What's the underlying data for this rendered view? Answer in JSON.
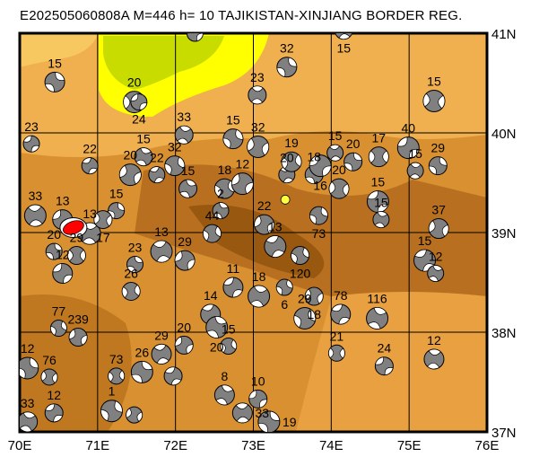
{
  "title": "E202505060808A M=446 h= 10 TAJIKISTAN-XINJIANG BORDER REG.",
  "map": {
    "extent": {
      "lon": [
        70,
        76
      ],
      "lat": [
        37,
        41
      ]
    },
    "lon_labels": [
      "70E",
      "71E",
      "72E",
      "73E",
      "74E",
      "75E",
      "76E"
    ],
    "lat_labels": [
      "37N",
      "38N",
      "39N",
      "40N",
      "41N"
    ],
    "colors": {
      "lowland": "#ffff00",
      "lowland2": "#c8dc00",
      "foothill": "#f0b050",
      "mid": "#d89030",
      "high": "#b87020",
      "peak": "#985810",
      "mechanism": "#808080",
      "main_event": "#ff0000",
      "epicenter": "#ffff40"
    },
    "main_event": {
      "lon": 70.69,
      "lat": 39.05
    },
    "epicenter": {
      "lon": 73.41,
      "lat": 39.33
    },
    "mechanisms": [
      {
        "lon": 72.25,
        "lat": 41.0,
        "label": ""
      },
      {
        "lon": 74.16,
        "lat": 41.03,
        "label": "15"
      },
      {
        "lon": 70.45,
        "lat": 40.51,
        "label": "15"
      },
      {
        "lon": 71.47,
        "lat": 40.31,
        "label": "20"
      },
      {
        "lon": 71.53,
        "lat": 40.31,
        "label": "24"
      },
      {
        "lon": 73.05,
        "lat": 40.38,
        "label": "23"
      },
      {
        "lon": 73.43,
        "lat": 40.66,
        "label": "32"
      },
      {
        "lon": 75.32,
        "lat": 40.32,
        "label": "15"
      },
      {
        "lon": 70.15,
        "lat": 39.89,
        "label": "23"
      },
      {
        "lon": 72.11,
        "lat": 39.98,
        "label": "33"
      },
      {
        "lon": 72.74,
        "lat": 39.94,
        "label": "15"
      },
      {
        "lon": 73.06,
        "lat": 39.86,
        "label": "32"
      },
      {
        "lon": 70.9,
        "lat": 39.67,
        "label": "22"
      },
      {
        "lon": 71.59,
        "lat": 39.76,
        "label": "15"
      },
      {
        "lon": 71.99,
        "lat": 39.67,
        "label": "32"
      },
      {
        "lon": 71.42,
        "lat": 39.58,
        "label": "20"
      },
      {
        "lon": 71.76,
        "lat": 39.58,
        "label": "22"
      },
      {
        "lon": 72.16,
        "lat": 39.44,
        "label": "15"
      },
      {
        "lon": 72.63,
        "lat": 39.44,
        "label": "18"
      },
      {
        "lon": 72.86,
        "lat": 39.49,
        "label": "12"
      },
      {
        "lon": 73.43,
        "lat": 39.58,
        "label": "20"
      },
      {
        "lon": 73.78,
        "lat": 39.58,
        "label": "18"
      },
      {
        "lon": 73.49,
        "lat": 39.71,
        "label": "19"
      },
      {
        "lon": 73.86,
        "lat": 39.67,
        "label": "16"
      },
      {
        "lon": 74.05,
        "lat": 39.8,
        "label": "15"
      },
      {
        "lon": 74.28,
        "lat": 39.71,
        "label": "20"
      },
      {
        "lon": 74.61,
        "lat": 39.76,
        "label": "17"
      },
      {
        "lon": 74.99,
        "lat": 39.85,
        "label": "40"
      },
      {
        "lon": 75.08,
        "lat": 39.62,
        "label": "15"
      },
      {
        "lon": 75.37,
        "lat": 39.67,
        "label": "29"
      },
      {
        "lon": 74.1,
        "lat": 39.44,
        "label": "20"
      },
      {
        "lon": 74.6,
        "lat": 39.31,
        "label": "15"
      },
      {
        "lon": 74.64,
        "lat": 39.13,
        "label": "15"
      },
      {
        "lon": 73.84,
        "lat": 39.17,
        "label": "73"
      },
      {
        "lon": 75.38,
        "lat": 39.04,
        "label": "37"
      },
      {
        "lon": 75.2,
        "lat": 38.72,
        "label": "15"
      },
      {
        "lon": 75.34,
        "lat": 38.59,
        "label": "12"
      },
      {
        "lon": 73.6,
        "lat": 38.77,
        "label": "120"
      },
      {
        "lon": 73.14,
        "lat": 39.08,
        "label": "22"
      },
      {
        "lon": 73.28,
        "lat": 38.86,
        "label": "13"
      },
      {
        "lon": 72.58,
        "lat": 39.22,
        "label": "2"
      },
      {
        "lon": 72.47,
        "lat": 38.99,
        "label": "44"
      },
      {
        "lon": 72.12,
        "lat": 38.72,
        "label": "29"
      },
      {
        "lon": 71.82,
        "lat": 38.81,
        "label": "13"
      },
      {
        "lon": 71.48,
        "lat": 38.68,
        "label": "23"
      },
      {
        "lon": 71.43,
        "lat": 38.41,
        "label": "26"
      },
      {
        "lon": 70.55,
        "lat": 39.13,
        "label": "13"
      },
      {
        "lon": 70.2,
        "lat": 39.17,
        "label": "33"
      },
      {
        "lon": 70.44,
        "lat": 38.81,
        "label": "20"
      },
      {
        "lon": 70.73,
        "lat": 38.77,
        "label": "29"
      },
      {
        "lon": 70.55,
        "lat": 38.59,
        "label": "12"
      },
      {
        "lon": 70.9,
        "lat": 38.99,
        "label": "13"
      },
      {
        "lon": 71.24,
        "lat": 39.22,
        "label": "15"
      },
      {
        "lon": 71.07,
        "lat": 39.13,
        "label": "17"
      },
      {
        "lon": 72.74,
        "lat": 38.45,
        "label": "11"
      },
      {
        "lon": 73.07,
        "lat": 38.36,
        "label": "18"
      },
      {
        "lon": 73.4,
        "lat": 38.45,
        "label": "6"
      },
      {
        "lon": 73.78,
        "lat": 38.36,
        "label": "18"
      },
      {
        "lon": 74.12,
        "lat": 38.18,
        "label": "78"
      },
      {
        "lon": 74.59,
        "lat": 38.14,
        "label": "116"
      },
      {
        "lon": 70.5,
        "lat": 38.04,
        "label": "77"
      },
      {
        "lon": 70.75,
        "lat": 37.95,
        "label": "239"
      },
      {
        "lon": 72.45,
        "lat": 38.18,
        "label": "14"
      },
      {
        "lon": 72.53,
        "lat": 38.05,
        "label": "20"
      },
      {
        "lon": 72.68,
        "lat": 37.86,
        "label": "15"
      },
      {
        "lon": 72.11,
        "lat": 37.87,
        "label": "20"
      },
      {
        "lon": 71.82,
        "lat": 37.78,
        "label": "29"
      },
      {
        "lon": 71.57,
        "lat": 37.6,
        "label": "26"
      },
      {
        "lon": 71.24,
        "lat": 37.56,
        "label": "73"
      },
      {
        "lon": 73.06,
        "lat": 37.33,
        "label": "10"
      },
      {
        "lon": 72.86,
        "lat": 37.19,
        "label": "33"
      },
      {
        "lon": 73.2,
        "lat": 37.1,
        "label": "19"
      },
      {
        "lon": 74.07,
        "lat": 37.79,
        "label": "21"
      },
      {
        "lon": 74.68,
        "lat": 37.66,
        "label": "24"
      },
      {
        "lon": 75.32,
        "lat": 37.73,
        "label": "12"
      },
      {
        "lon": 70.1,
        "lat": 37.64,
        "label": "12"
      },
      {
        "lon": 70.38,
        "lat": 37.55,
        "label": "76"
      },
      {
        "lon": 70.44,
        "lat": 37.19,
        "label": "12"
      },
      {
        "lon": 70.1,
        "lat": 37.1,
        "label": "33"
      },
      {
        "lon": 71.18,
        "lat": 37.21,
        "label": "1"
      },
      {
        "lon": 71.47,
        "lat": 37.17,
        "label": ""
      },
      {
        "lon": 71.97,
        "lat": 37.56,
        "label": ""
      },
      {
        "lon": 72.63,
        "lat": 37.37,
        "label": "8"
      },
      {
        "lon": 73.66,
        "lat": 38.14,
        "label": "29"
      }
    ]
  }
}
